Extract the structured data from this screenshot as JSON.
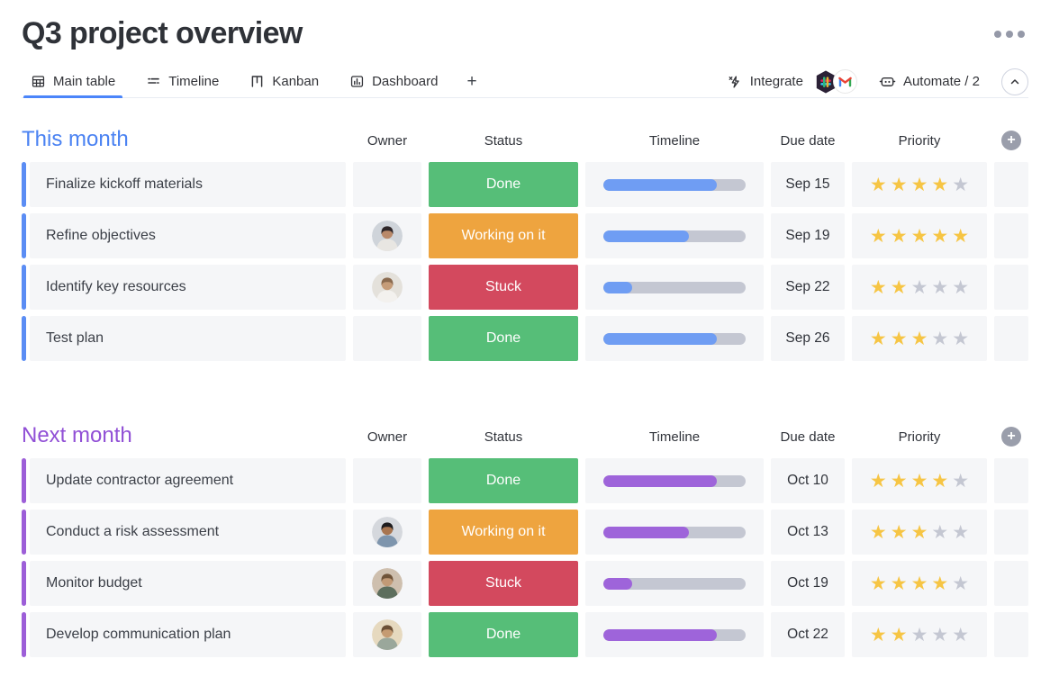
{
  "page": {
    "title": "Q3 project overview"
  },
  "menu": {
    "more_icon": "ellipsis-icon"
  },
  "tabs": [
    {
      "label": "Main table",
      "icon": "table-icon",
      "active": true
    },
    {
      "label": "Timeline",
      "icon": "timeline-icon",
      "active": false
    },
    {
      "label": "Kanban",
      "icon": "kanban-icon",
      "active": false
    },
    {
      "label": "Dashboard",
      "icon": "dashboard-icon",
      "active": false
    }
  ],
  "add_tab_label": "+",
  "toolbar": {
    "integrate_label": "Integrate",
    "integrate_icon": "zap-icon",
    "integration_badges": [
      "slack-icon",
      "gmail-icon"
    ],
    "automate_label": "Automate / 2",
    "automate_icon": "robot-icon",
    "collapse_icon": "chevron-up-icon"
  },
  "columns": [
    "Owner",
    "Status",
    "Timeline",
    "Due date",
    "Priority"
  ],
  "add_column_icon": "plus-circle-icon",
  "status_colors": {
    "Done": "#56be78",
    "Working on it": "#eea43f",
    "Stuck": "#d3495e"
  },
  "priority": {
    "max": 5,
    "star_glyph": "★",
    "filled_color": "#f6c544",
    "empty_color": "#c4c7d2"
  },
  "progress_track_color": "#c4c7d2",
  "tab_active_color": "#4b85fa",
  "groups": [
    {
      "title": "This month",
      "color": "#4a82f2",
      "accent": "#5b8df4",
      "bar_color": "#6f9df3",
      "rows": [
        {
          "name": "Finalize kickoff materials",
          "owner_avatar": false,
          "avatar_id": 0,
          "status": "Done",
          "progress": 80,
          "due_date": "Sep 15",
          "priority": 4
        },
        {
          "name": "Refine objectives",
          "owner_avatar": true,
          "avatar_id": 1,
          "status": "Working on it",
          "progress": 60,
          "due_date": "Sep 19",
          "priority": 5
        },
        {
          "name": "Identify key resources",
          "owner_avatar": true,
          "avatar_id": 2,
          "status": "Stuck",
          "progress": 20,
          "due_date": "Sep 22",
          "priority": 2
        },
        {
          "name": "Test plan",
          "owner_avatar": false,
          "avatar_id": 0,
          "status": "Done",
          "progress": 80,
          "due_date": "Sep 26",
          "priority": 3
        }
      ]
    },
    {
      "title": "Next month",
      "color": "#9150d6",
      "accent": "#9d5fd8",
      "bar_color": "#9e64da",
      "rows": [
        {
          "name": "Update contractor agreement",
          "owner_avatar": false,
          "avatar_id": 0,
          "status": "Done",
          "progress": 80,
          "due_date": "Oct 10",
          "priority": 4
        },
        {
          "name": "Conduct a risk assessment",
          "owner_avatar": true,
          "avatar_id": 3,
          "status": "Working on it",
          "progress": 60,
          "due_date": "Oct 13",
          "priority": 3
        },
        {
          "name": "Monitor budget",
          "owner_avatar": true,
          "avatar_id": 4,
          "status": "Stuck",
          "progress": 20,
          "due_date": "Oct 19",
          "priority": 4
        },
        {
          "name": "Develop communication plan",
          "owner_avatar": true,
          "avatar_id": 5,
          "status": "Done",
          "progress": 80,
          "due_date": "Oct 22",
          "priority": 2
        }
      ]
    }
  ]
}
